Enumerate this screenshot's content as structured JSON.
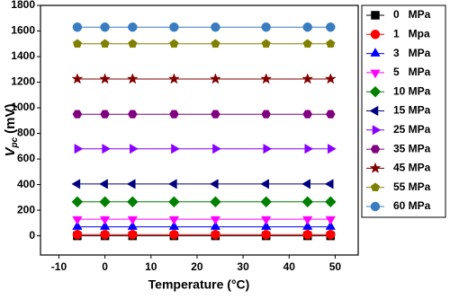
{
  "chart_data": {
    "type": "line",
    "x_label": "Temperature (°C)",
    "y_label": "V",
    "y_label_sub": "pc",
    "y_label_unit": "(mV)",
    "x": [
      -6,
      0,
      6,
      15,
      24,
      35,
      44,
      49
    ],
    "xlim": [
      -14,
      55
    ],
    "xticks": [
      -10,
      0,
      10,
      20,
      30,
      40,
      50
    ],
    "ylim": [
      -150,
      1800
    ],
    "yticks": [
      0,
      200,
      400,
      600,
      800,
      1000,
      1200,
      1400,
      1600,
      1800
    ],
    "legend": "right",
    "series": [
      {
        "name": "0   MPa",
        "color": "#000000",
        "marker": "square",
        "values": [
          0,
          0,
          0,
          0,
          0,
          0,
          0,
          0
        ]
      },
      {
        "name": "1   Mpa",
        "color": "#ff0000",
        "marker": "circle",
        "values": [
          10,
          10,
          10,
          10,
          10,
          10,
          10,
          10
        ]
      },
      {
        "name": "3   MPa",
        "color": "#0000ff",
        "marker": "triangle-up",
        "values": [
          70,
          70,
          70,
          70,
          70,
          70,
          70,
          70
        ]
      },
      {
        "name": "5   MPa",
        "color": "#ff00ff",
        "marker": "triangle-down",
        "values": [
          130,
          130,
          130,
          130,
          130,
          130,
          130,
          130
        ]
      },
      {
        "name": "10 MPa",
        "color": "#008000",
        "marker": "diamond",
        "values": [
          265,
          265,
          265,
          265,
          265,
          265,
          265,
          265
        ]
      },
      {
        "name": "15 MPa",
        "color": "#000080",
        "marker": "triangle-left",
        "values": [
          405,
          405,
          405,
          405,
          405,
          405,
          405,
          405
        ]
      },
      {
        "name": "25 MPa",
        "color": "#8a00ff",
        "marker": "triangle-right",
        "values": [
          680,
          680,
          680,
          680,
          680,
          680,
          680,
          680
        ]
      },
      {
        "name": "35 MPa",
        "color": "#800080",
        "marker": "hexagon",
        "values": [
          950,
          950,
          950,
          950,
          950,
          950,
          950,
          950
        ]
      },
      {
        "name": "45 MPa",
        "color": "#800000",
        "marker": "star",
        "values": [
          1225,
          1225,
          1225,
          1225,
          1225,
          1225,
          1225,
          1225
        ]
      },
      {
        "name": "55 MPa",
        "color": "#808000",
        "marker": "pentagon",
        "values": [
          1500,
          1500,
          1500,
          1500,
          1500,
          1500,
          1500,
          1500
        ]
      },
      {
        "name": "60 MPa",
        "color": "#3a7cc0",
        "marker": "circle",
        "values": [
          1630,
          1630,
          1630,
          1630,
          1630,
          1630,
          1630,
          1630
        ]
      }
    ]
  }
}
